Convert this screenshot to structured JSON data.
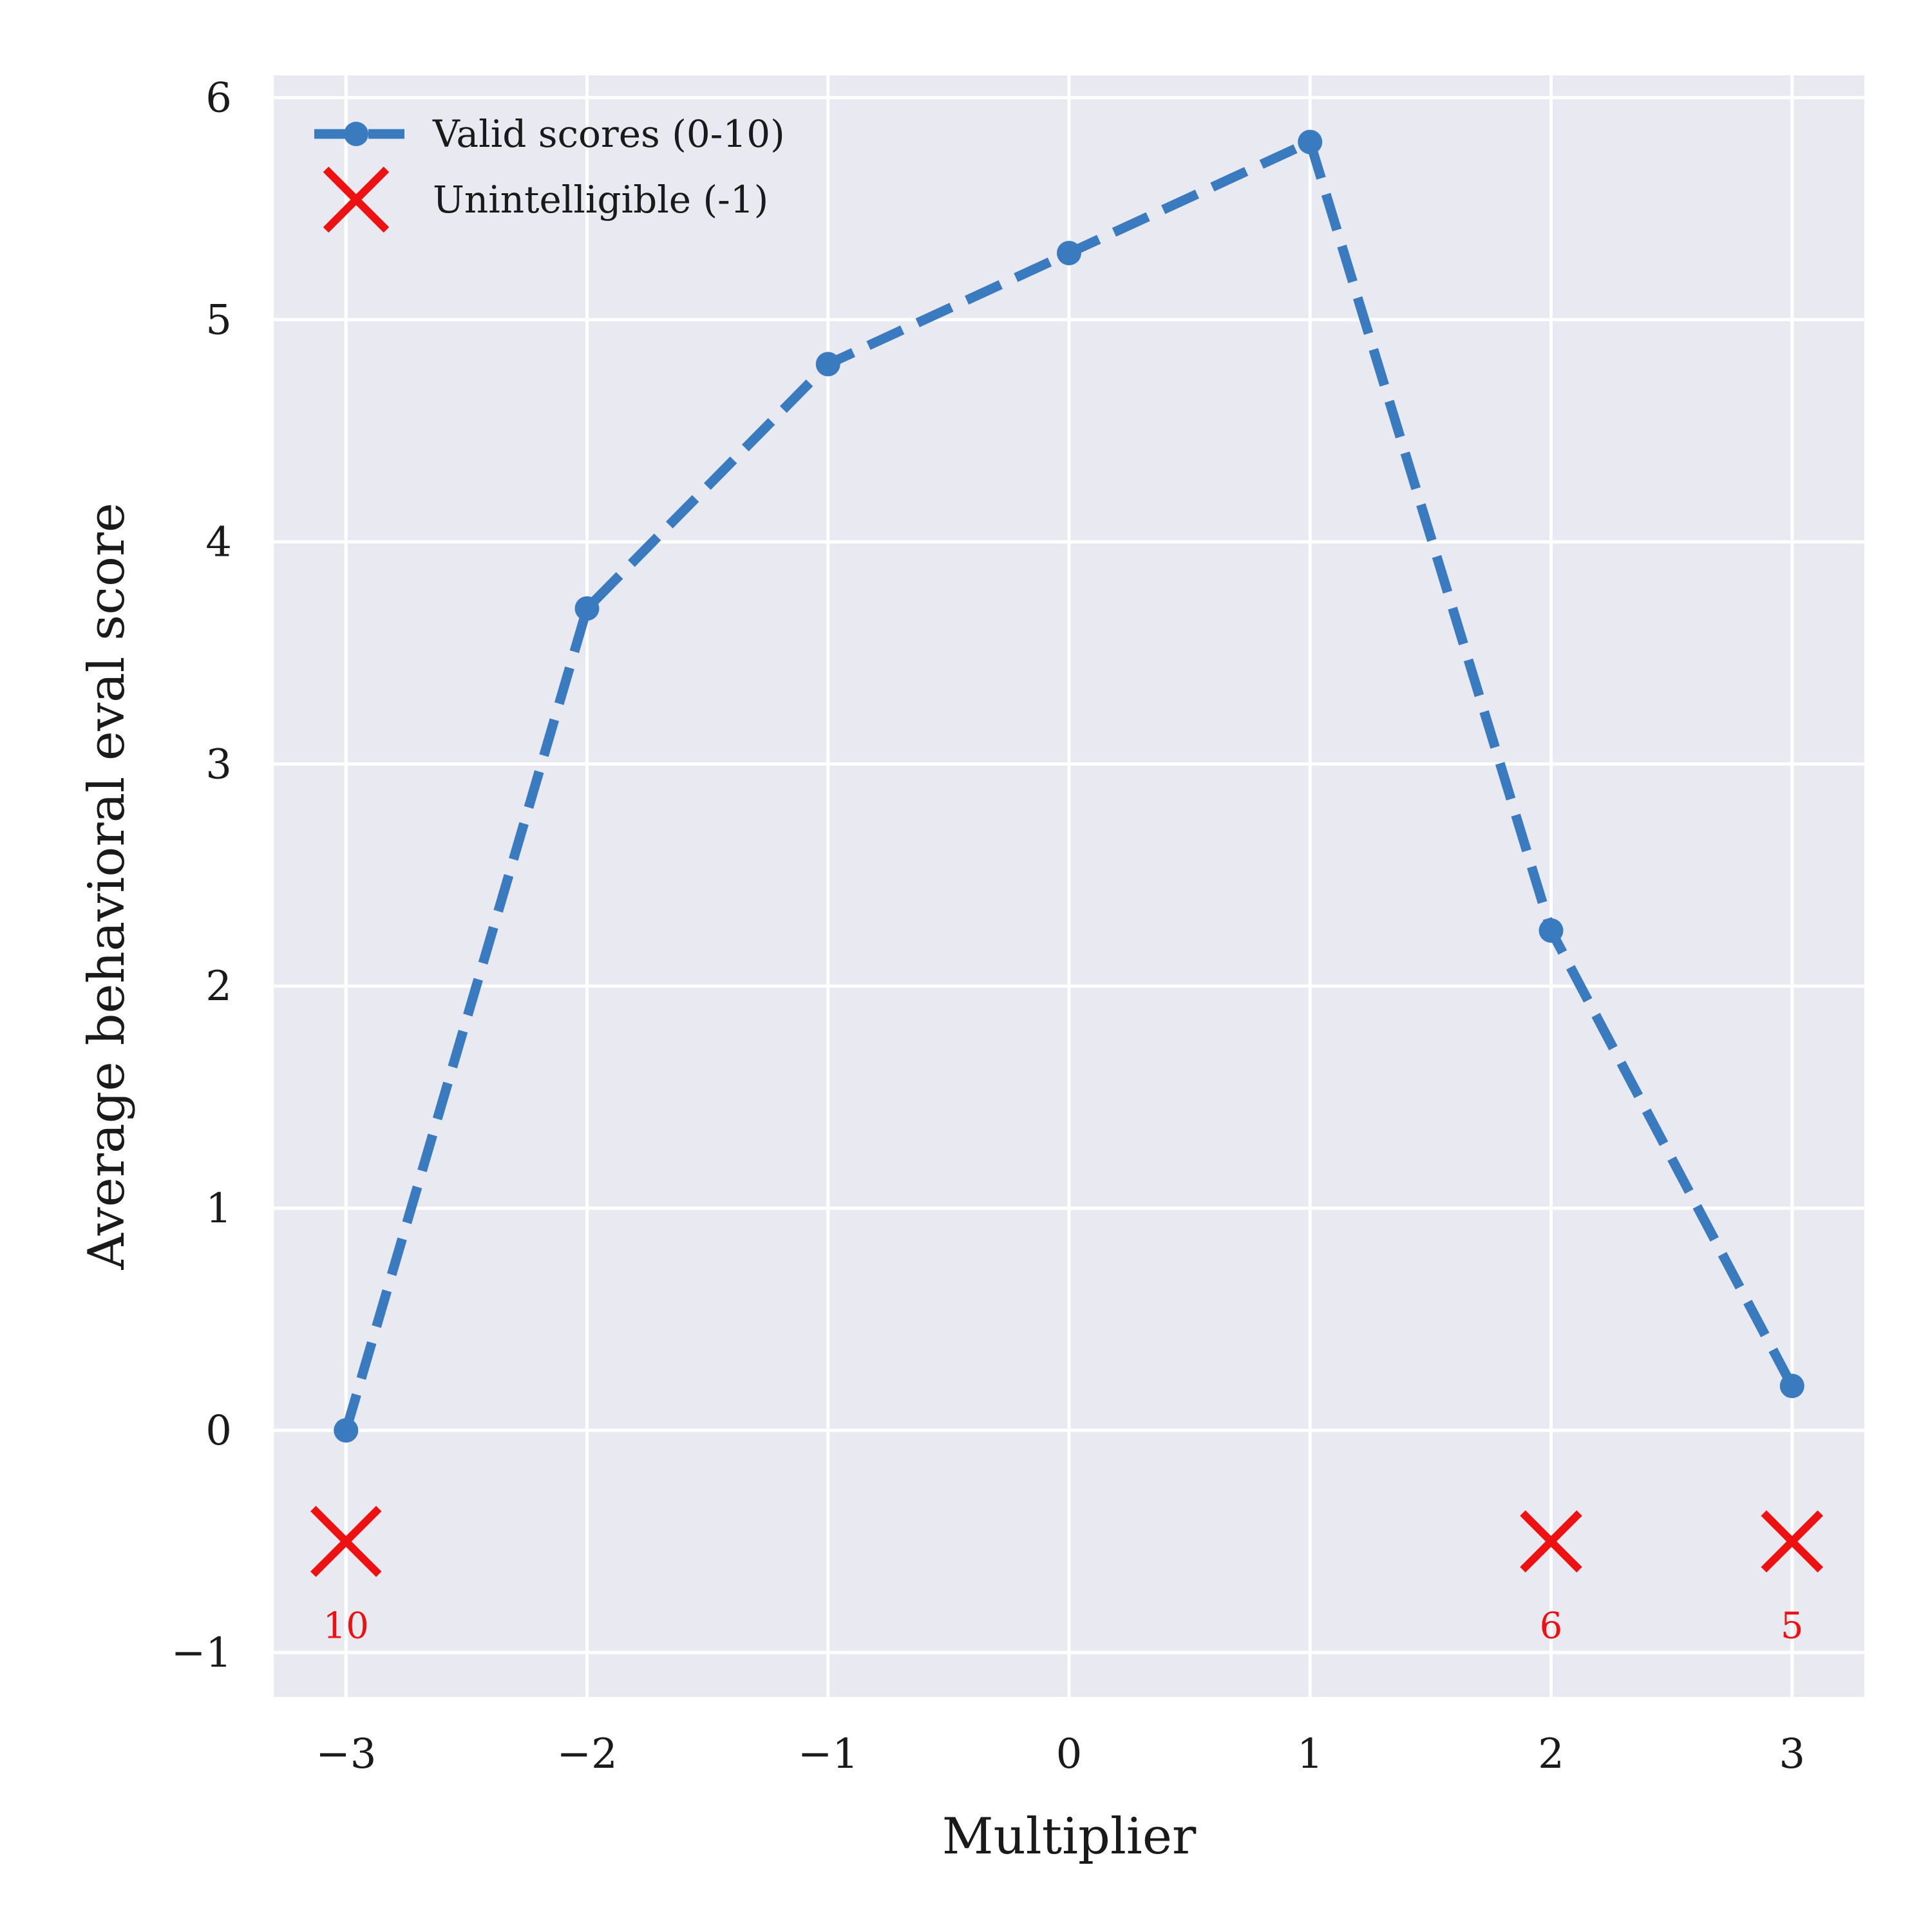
{
  "chart_data": {
    "type": "line",
    "xlabel": "Multiplier",
    "ylabel": "Average behavioral eval score",
    "xlim": [
      -3.3,
      3.3
    ],
    "ylim": [
      -1.2,
      6.1
    ],
    "x_ticks": [
      -3,
      -2,
      -1,
      0,
      1,
      2,
      3
    ],
    "x_tick_labels": [
      "−3",
      "−2",
      "−1",
      "0",
      "1",
      "2",
      "3"
    ],
    "y_ticks": [
      -1,
      0,
      1,
      2,
      3,
      4,
      5,
      6
    ],
    "y_tick_labels": [
      "−1",
      "0",
      "1",
      "2",
      "3",
      "4",
      "5",
      "6"
    ],
    "grid": true,
    "legend_position": "top-left",
    "series": [
      {
        "name": "Valid scores (0-10)",
        "style": "dashed-line-with-circle-markers",
        "color": "#3a7bbf",
        "x": [
          -3,
          -2,
          -1,
          0,
          1,
          2,
          3
        ],
        "y": [
          0.0,
          3.7,
          4.8,
          5.3,
          5.8,
          2.25,
          0.2
        ]
      },
      {
        "name": "Unintelligible (-1)",
        "style": "x-markers",
        "color": "#ee1111",
        "x": [
          -3,
          2,
          3
        ],
        "y": [
          -0.5,
          -0.5,
          -0.5
        ],
        "counts": [
          "10",
          "6",
          "5"
        ]
      }
    ],
    "background_color": "#e9e9f2",
    "grid_color": "#ffffff"
  }
}
